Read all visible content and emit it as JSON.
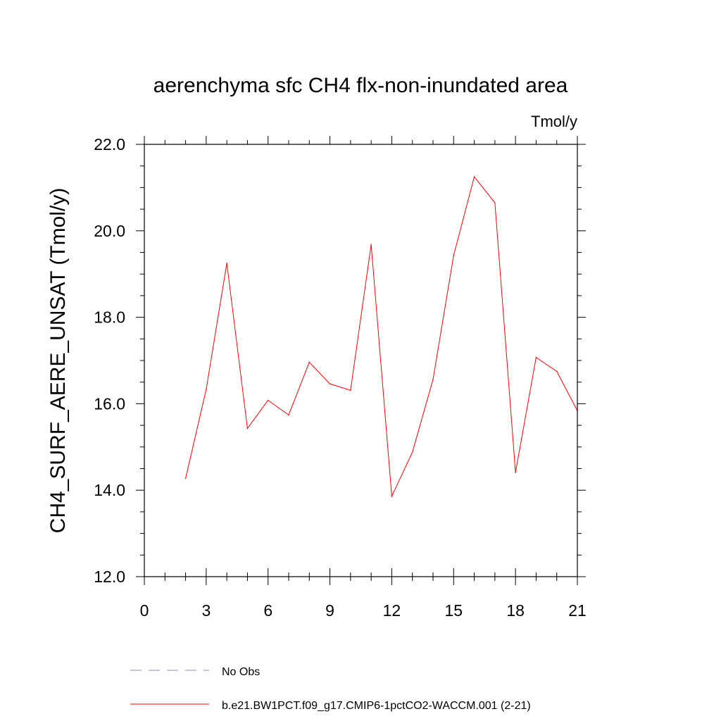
{
  "chart_data": {
    "type": "line",
    "title": "aerenchyma sfc CH4 flx-non-inundated area",
    "units": "Tmol/y",
    "xlabel": "",
    "ylabel": "CH4_SURF_AERE_UNSAT  (Tmol/y)",
    "xlim": [
      0,
      21
    ],
    "ylim": [
      12.0,
      22.0
    ],
    "x_ticks": [
      0,
      3,
      6,
      9,
      12,
      15,
      18,
      21
    ],
    "x_tick_labels": [
      "0",
      "3",
      "6",
      "9",
      "12",
      "15",
      "18",
      "21"
    ],
    "y_ticks": [
      12.0,
      14.0,
      16.0,
      18.0,
      20.0,
      22.0
    ],
    "y_tick_labels": [
      "12.0",
      "14.0",
      "16.0",
      "18.0",
      "20.0",
      "22.0"
    ],
    "x_minor_step": 1,
    "y_minor_step": 0.5,
    "grid": false,
    "legend_position": "bottom-left",
    "series": [
      {
        "name": "b.e21.BW1PCT.f09_g17.CMIP6-1pctCO2-WACCM.001 (2-21)",
        "color": "#ff0000",
        "style": "solid",
        "x": [
          2,
          3,
          4,
          5,
          6,
          7,
          8,
          9,
          10,
          11,
          12,
          13,
          14,
          15,
          16,
          17,
          18,
          19,
          20,
          21
        ],
        "y": [
          14.27,
          16.33,
          19.25,
          15.43,
          16.08,
          15.74,
          16.96,
          16.46,
          16.31,
          19.68,
          13.86,
          14.88,
          16.56,
          19.43,
          21.25,
          20.65,
          14.41,
          17.07,
          16.75,
          15.84
        ]
      }
    ],
    "legend": [
      {
        "label": "No Obs",
        "color": "#8888cc",
        "style": "dashed"
      },
      {
        "label": "b.e21.BW1PCT.f09_g17.CMIP6-1pctCO2-WACCM.001 (2-21)",
        "color": "#ff0000",
        "style": "solid"
      }
    ]
  }
}
